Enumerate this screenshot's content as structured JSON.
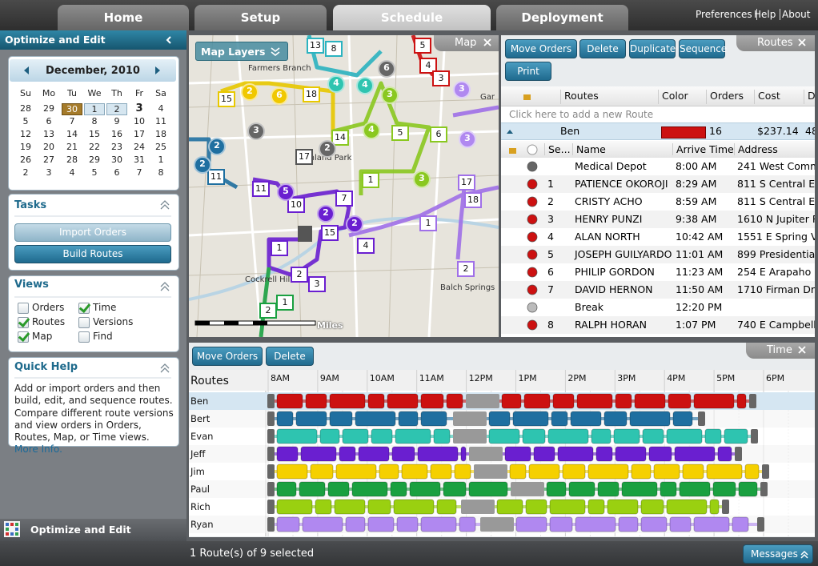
{
  "tabs": [
    "Home",
    "Setup",
    "Schedule",
    "Deployment"
  ],
  "top_links": [
    "Preferences",
    "Help",
    "About"
  ],
  "sidebar": {
    "title": "Optimize and Edit",
    "calendar": {
      "month": "December, 2010",
      "weekdays": [
        "Su",
        "Mo",
        "Tu",
        "We",
        "Th",
        "Fr",
        "Sa"
      ],
      "weeks": [
        [
          "28",
          "29",
          "30",
          "1",
          "2",
          "3",
          "4"
        ],
        [
          "5",
          "6",
          "7",
          "8",
          "9",
          "10",
          "11"
        ],
        [
          "12",
          "13",
          "14",
          "15",
          "16",
          "17",
          "18"
        ],
        [
          "19",
          "20",
          "21",
          "22",
          "23",
          "24",
          "25"
        ],
        [
          "26",
          "27",
          "28",
          "29",
          "30",
          "31",
          "1"
        ],
        [
          "2",
          "3",
          "4",
          "5",
          "6",
          "7",
          "8"
        ]
      ]
    },
    "tasks": {
      "title": "Tasks",
      "buttons": [
        "Import Orders",
        "Build Routes"
      ]
    },
    "views": {
      "title": "Views",
      "options": [
        {
          "label": "Orders",
          "checked": false
        },
        {
          "label": "Time",
          "checked": true
        },
        {
          "label": "Routes",
          "checked": true
        },
        {
          "label": "Versions",
          "checked": false
        },
        {
          "label": "Map",
          "checked": true
        },
        {
          "label": "Find",
          "checked": false
        }
      ]
    },
    "quick_help": {
      "title": "Quick Help",
      "text": "Add or import orders and then build, edit, and sequence routes.  Compare different route versions and view orders in Orders, Routes, Map, or Time views.",
      "link": "More Info."
    },
    "footer": "Optimize and Edit"
  },
  "map": {
    "title": "Map",
    "layers_button": "Map Layers",
    "scale": "Miles",
    "places": [
      "Farmers Branch",
      "Highland Park",
      "Cockrell Hill",
      "Balch Springs",
      "Gar"
    ],
    "markers": [
      {
        "label": "13",
        "color": "#2bb3c0",
        "shape": "square"
      },
      {
        "label": "8",
        "color": "#2bb3c0",
        "shape": "square"
      },
      {
        "label": "5",
        "color": "#cc1111",
        "shape": "square"
      },
      {
        "label": "4",
        "color": "#cc1111",
        "shape": "square"
      },
      {
        "label": "3",
        "color": "#cc1111",
        "shape": "square"
      },
      {
        "label": "15",
        "color": "#e8c800",
        "shape": "square"
      },
      {
        "label": "18",
        "color": "#e8c800",
        "shape": "square"
      },
      {
        "label": "14",
        "color": "#8ac820",
        "shape": "square"
      },
      {
        "label": "5",
        "color": "#8ac820",
        "shape": "square"
      },
      {
        "label": "6",
        "color": "#8ac820",
        "shape": "square"
      },
      {
        "label": "1",
        "color": "#8ac820",
        "shape": "square"
      },
      {
        "label": "17",
        "color": "#555555",
        "shape": "square"
      },
      {
        "label": "11",
        "color": "#6a1fd0",
        "shape": "square"
      },
      {
        "label": "10",
        "color": "#6a1fd0",
        "shape": "square"
      },
      {
        "label": "7",
        "color": "#6a1fd0",
        "shape": "square"
      },
      {
        "label": "15",
        "color": "#6a1fd0",
        "shape": "square"
      },
      {
        "label": "4",
        "color": "#6a1fd0",
        "shape": "square"
      },
      {
        "label": "1",
        "color": "#6a1fd0",
        "shape": "square"
      },
      {
        "label": "2",
        "color": "#6a1fd0",
        "shape": "square"
      },
      {
        "label": "3",
        "color": "#6a1fd0",
        "shape": "square"
      },
      {
        "label": "1",
        "color": "#1aa040",
        "shape": "square"
      },
      {
        "label": "2",
        "color": "#1aa040",
        "shape": "square"
      },
      {
        "label": "11",
        "color": "#1f6fa0",
        "shape": "square"
      },
      {
        "label": "1",
        "color": "#a070e8",
        "shape": "square"
      },
      {
        "label": "2",
        "color": "#a070e8",
        "shape": "square"
      },
      {
        "label": "17",
        "color": "#a070e8",
        "shape": "square"
      },
      {
        "label": "18",
        "color": "#a070e8",
        "shape": "square"
      },
      {
        "label": "6",
        "color": "#666666",
        "shape": "circle"
      },
      {
        "label": "2",
        "color": "#f0c800",
        "shape": "circle"
      },
      {
        "label": "6",
        "color": "#f0c800",
        "shape": "circle"
      },
      {
        "label": "4",
        "color": "#2ec4b0",
        "shape": "circle"
      },
      {
        "label": "4",
        "color": "#2ec4b0",
        "shape": "circle"
      },
      {
        "label": "3",
        "color": "#8ac820",
        "shape": "circle"
      },
      {
        "label": "4",
        "color": "#8ac820",
        "shape": "circle"
      },
      {
        "label": "3",
        "color": "#8ac820",
        "shape": "circle"
      },
      {
        "label": "3",
        "color": "#b088f0",
        "shape": "circle"
      },
      {
        "label": "3",
        "color": "#b088f0",
        "shape": "circle"
      },
      {
        "label": "3",
        "color": "#666666",
        "shape": "circle"
      },
      {
        "label": "2",
        "color": "#666666",
        "shape": "circle"
      },
      {
        "label": "2",
        "color": "#1f6fa0",
        "shape": "circle"
      },
      {
        "label": "2",
        "color": "#1f6fa0",
        "shape": "circle"
      },
      {
        "label": "5",
        "color": "#6a1fd0",
        "shape": "circle"
      },
      {
        "label": "2",
        "color": "#6a1fd0",
        "shape": "circle"
      },
      {
        "label": "2",
        "color": "#6a1fd0",
        "shape": "circle"
      }
    ]
  },
  "routes_panel": {
    "title": "Routes",
    "buttons": [
      "Move Orders",
      "Delete",
      "Duplicate",
      "Sequence",
      "Print"
    ],
    "columns": [
      "Routes",
      "Color",
      "Orders",
      "Cost",
      "D"
    ],
    "add_row": "Click here to add a new Route",
    "route": {
      "name": "Ben",
      "color": "#cc1111",
      "orders": "16",
      "cost": "$237.14",
      "extra": "48"
    },
    "stop_columns": [
      "Se...",
      "Name",
      "Arrive Time",
      "Address"
    ],
    "stops": [
      {
        "seq": null,
        "name": "Medical Depot",
        "time": "8:00 AM",
        "address": "241 West Comm",
        "color": "#666666"
      },
      {
        "seq": "1",
        "name": "PATIENCE OKOROJI",
        "time": "8:29 AM",
        "address": "811 S Central Ex",
        "color": "#cc1111"
      },
      {
        "seq": "2",
        "name": "CRISTY ACHO",
        "time": "8:59 AM",
        "address": "811 S Central Ex",
        "color": "#cc1111"
      },
      {
        "seq": "3",
        "name": "HENRY PUNZI",
        "time": "9:38 AM",
        "address": "1610 N Jupiter R",
        "color": "#cc1111"
      },
      {
        "seq": "4",
        "name": "ALAN NORTH",
        "time": "10:42 AM",
        "address": "1551 E Spring Va",
        "color": "#cc1111"
      },
      {
        "seq": "5",
        "name": "JOSEPH GUILYARDO",
        "time": "11:01 AM",
        "address": "899 Presidential",
        "color": "#cc1111"
      },
      {
        "seq": "6",
        "name": "PHILIP GORDON",
        "time": "11:23 AM",
        "address": "254 E Arapaho R",
        "color": "#cc1111"
      },
      {
        "seq": "7",
        "name": "DAVID HERNON",
        "time": "11:50 AM",
        "address": "1710 Firman Dr",
        "color": "#cc1111"
      },
      {
        "seq": null,
        "name": "Break",
        "time": "12:20 PM",
        "address": null,
        "color": "#bbbbbb"
      },
      {
        "seq": "8",
        "name": "RALPH HORAN",
        "time": "1:07 PM",
        "address": "740 E Campbell R",
        "color": "#cc1111"
      }
    ]
  },
  "time_panel": {
    "title": "Time",
    "buttons": [
      "Move Orders",
      "Delete"
    ],
    "routes_header": "Routes",
    "hours": [
      "8AM",
      "9AM",
      "10AM",
      "11AM",
      "12PM",
      "1PM",
      "2PM",
      "3PM",
      "4PM",
      "5PM",
      "6PM"
    ],
    "routes": [
      {
        "name": "Ben",
        "color": "#cc1111"
      },
      {
        "name": "Bert",
        "color": "#1f6fa0"
      },
      {
        "name": "Evan",
        "color": "#2ec4b0"
      },
      {
        "name": "Jeff",
        "color": "#6a1fd0"
      },
      {
        "name": "Jim",
        "color": "#f5d000"
      },
      {
        "name": "Paul",
        "color": "#1aa040"
      },
      {
        "name": "Rich",
        "color": "#9ad010"
      },
      {
        "name": "Ryan",
        "color": "#b088f0"
      }
    ]
  },
  "status": {
    "text": "1 Route(s) of 9 selected",
    "messages": "Messages"
  }
}
